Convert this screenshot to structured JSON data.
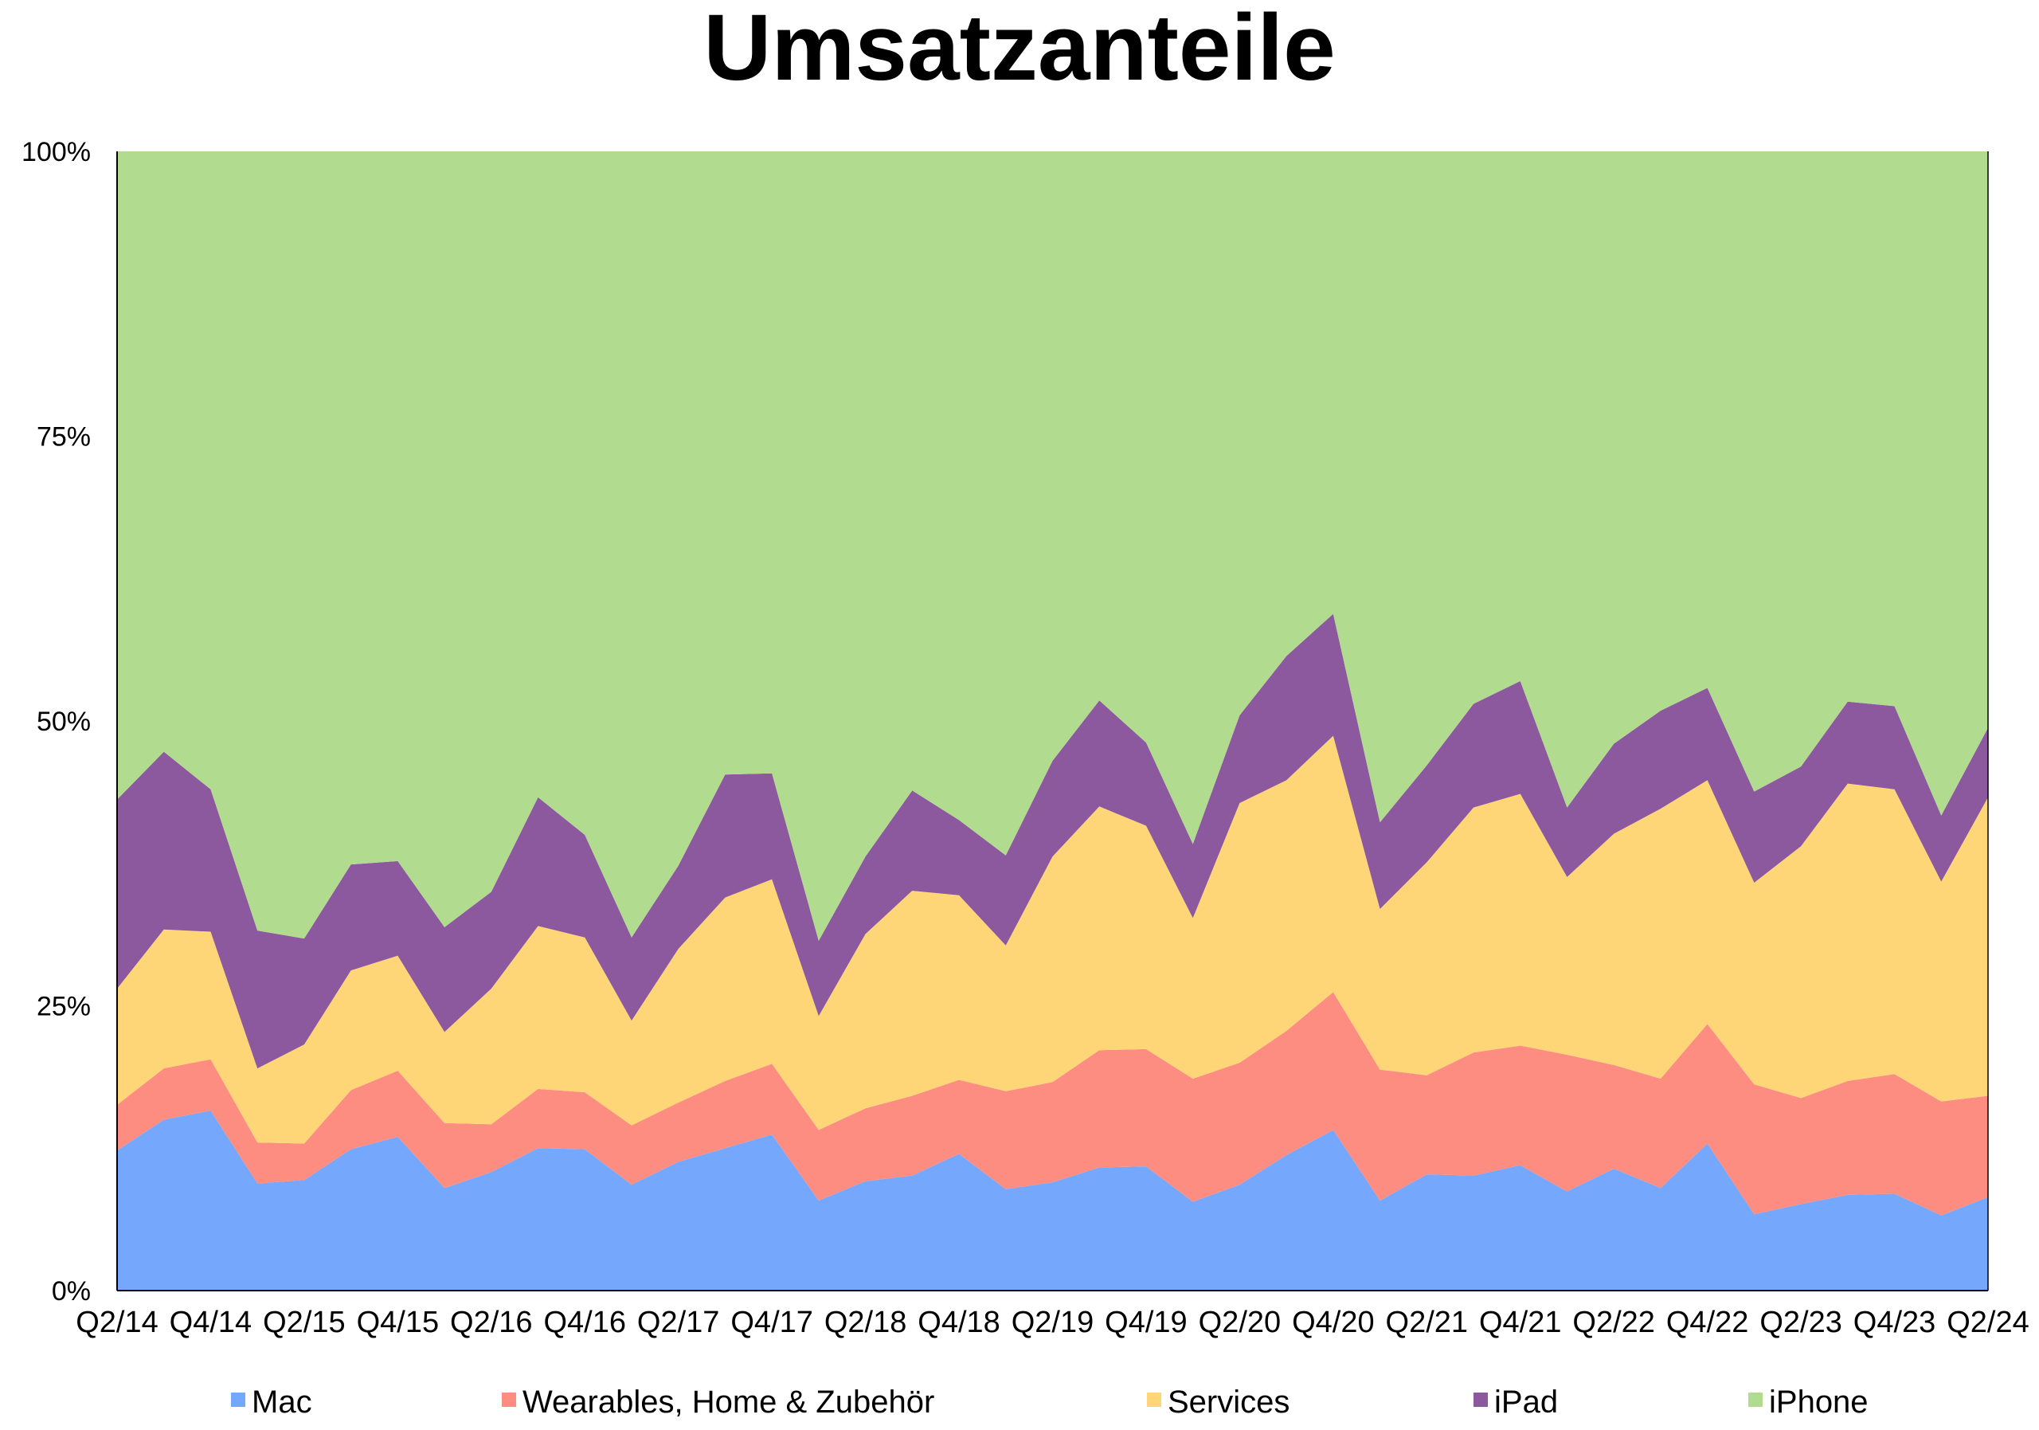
{
  "chart_data": {
    "type": "area",
    "stacked": true,
    "percent": true,
    "title": "Umsatzanteile",
    "xlabel": "",
    "ylabel": "",
    "ylim": [
      0,
      100
    ],
    "yticks": [
      "0%",
      "25%",
      "50%",
      "75%",
      "100%"
    ],
    "x": [
      "Q2/14",
      "Q3/14",
      "Q4/14",
      "Q1/15",
      "Q2/15",
      "Q3/15",
      "Q4/15",
      "Q1/16",
      "Q2/16",
      "Q3/16",
      "Q4/16",
      "Q1/17",
      "Q2/17",
      "Q3/17",
      "Q4/17",
      "Q1/18",
      "Q2/18",
      "Q3/18",
      "Q4/18",
      "Q1/19",
      "Q2/19",
      "Q3/19",
      "Q4/19",
      "Q1/20",
      "Q2/20",
      "Q3/20",
      "Q4/20",
      "Q1/21",
      "Q2/21",
      "Q3/21",
      "Q4/21",
      "Q1/22",
      "Q2/22",
      "Q3/22",
      "Q4/22",
      "Q1/23",
      "Q2/23",
      "Q3/23",
      "Q4/23",
      "Q1/24",
      "Q2/24"
    ],
    "xtick_labels": [
      "Q2/14",
      "Q4/14",
      "Q2/15",
      "Q4/15",
      "Q2/16",
      "Q4/16",
      "Q2/17",
      "Q4/17",
      "Q2/18",
      "Q4/18",
      "Q2/19",
      "Q4/19",
      "Q2/20",
      "Q4/20",
      "Q2/21",
      "Q4/21",
      "Q2/22",
      "Q4/22",
      "Q2/23",
      "Q4/23",
      "Q2/24"
    ],
    "legend_position": "bottom",
    "series": [
      {
        "name": "Mac",
        "color": "#75a8fc",
        "values": [
          12.3,
          15,
          15.8,
          9.4,
          9.7,
          12.4,
          13.5,
          9,
          10.4,
          12.5,
          12.4,
          9.3,
          11.3,
          12.5,
          13.7,
          7.9,
          9.6,
          10.1,
          12,
          8.9,
          9.5,
          10.8,
          10.9,
          7.8,
          9.3,
          11.9,
          14.1,
          7.9,
          10.2,
          10.1,
          11,
          8.7,
          10.7,
          9,
          12.9,
          6.7,
          7.6,
          8.4,
          8.5,
          6.6,
          8.2
        ]
      },
      {
        "name": "Wearables, Home & Zubehör",
        "color": "#fd8d81",
        "values": [
          4,
          4.5,
          4.5,
          3.6,
          3.2,
          5.2,
          5.8,
          5.7,
          4.2,
          5.2,
          5,
          5.2,
          5.2,
          5.9,
          6.2,
          6.2,
          6.4,
          7,
          6.5,
          8.6,
          8.8,
          10.3,
          10.3,
          10.8,
          10.7,
          10.9,
          12.1,
          11.5,
          8.7,
          10.8,
          10.5,
          12,
          9.1,
          9.6,
          10.5,
          11.4,
          9.3,
          10,
          10.5,
          10,
          8.9
        ]
      },
      {
        "name": "Services",
        "color": "#fed678",
        "values": [
          10.2,
          12.2,
          11.2,
          6.5,
          8.7,
          10.5,
          10.1,
          8,
          11.9,
          14.3,
          13.6,
          9.2,
          13.5,
          16.1,
          16.2,
          10,
          15.3,
          18,
          16.2,
          12.8,
          19.8,
          21.4,
          19.6,
          14.1,
          22.8,
          22,
          22.5,
          14.1,
          18.7,
          21.5,
          22.1,
          15.6,
          20.3,
          23.7,
          21.4,
          17.7,
          22.1,
          26.1,
          25,
          19.3,
          26.2
        ]
      },
      {
        "name": "iPad",
        "color": "#8c599e",
        "values": [
          16.6,
          15.6,
          12.5,
          12.1,
          9.3,
          9.3,
          8.3,
          9.2,
          8.5,
          11.3,
          9,
          7.3,
          7.3,
          10.8,
          9.3,
          6.6,
          6.8,
          8.8,
          6.6,
          7.9,
          8.4,
          9.3,
          7.3,
          6.5,
          7.7,
          10.9,
          10.7,
          7.6,
          8.5,
          9.1,
          9.9,
          6.1,
          7.9,
          8.6,
          8.1,
          8,
          7,
          7.2,
          7.3,
          5.8,
          6.1
        ]
      },
      {
        "name": "iPhone",
        "color": "#b1db8e",
        "values": [
          56.9,
          52.7,
          56,
          68.4,
          69.1,
          62.6,
          62.3,
          68.1,
          65,
          56.7,
          60,
          69,
          62.7,
          54.7,
          54.6,
          69.3,
          61.9,
          56.1,
          58.7,
          61.8,
          53.5,
          48.2,
          51.9,
          60.8,
          49.5,
          44.3,
          40.6,
          58.9,
          53.9,
          48.5,
          46.5,
          57.6,
          52,
          49.1,
          47.1,
          56.2,
          54,
          48.3,
          48.7,
          58.3,
          50.6
        ]
      }
    ]
  }
}
